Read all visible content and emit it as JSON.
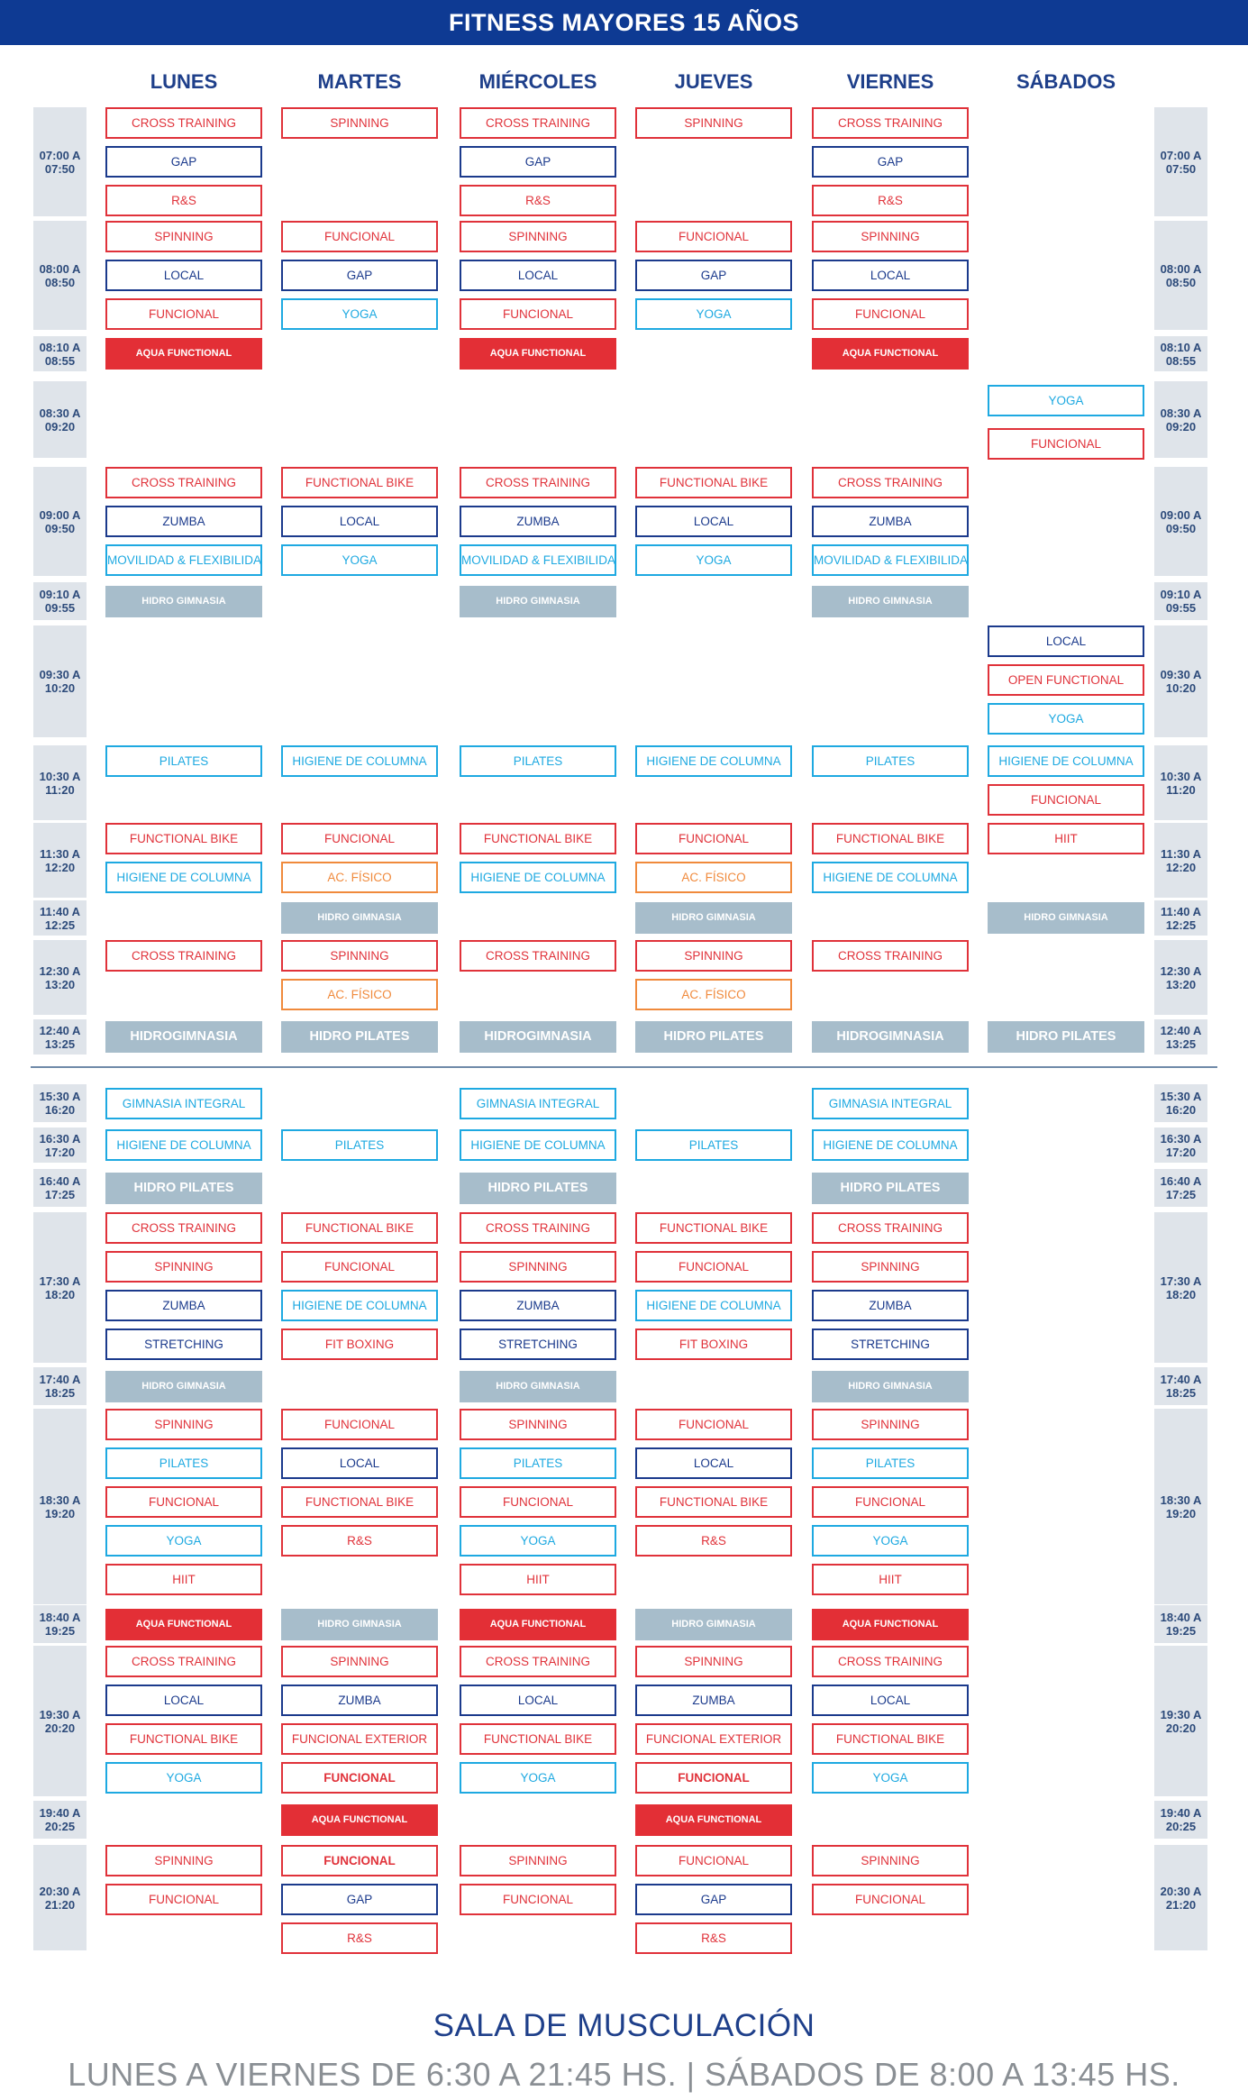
{
  "title": "FITNESS MAYORES 15 AÑOS",
  "days": [
    "LUNES",
    "MARTES",
    "MIÉRCOLES",
    "JUEVES",
    "VIERNES",
    "SÁBADOS"
  ],
  "slots": [
    {
      "time": [
        "07:00 A",
        "07:50"
      ],
      "classes": [
        [
          [
            "CROSS TRAINING",
            "red"
          ],
          [
            "GAP",
            "navy"
          ],
          [
            "R&S",
            "red"
          ]
        ],
        [
          [
            "SPINNING",
            "red"
          ]
        ],
        [
          [
            "CROSS TRAINING",
            "red"
          ],
          [
            "GAP",
            "navy"
          ],
          [
            "R&S",
            "red"
          ]
        ],
        [
          [
            "SPINNING",
            "red"
          ]
        ],
        [
          [
            "CROSS TRAINING",
            "red"
          ],
          [
            "GAP",
            "navy"
          ],
          [
            "R&S",
            "red"
          ]
        ],
        []
      ]
    },
    {
      "time": [
        "08:00 A",
        "08:50"
      ],
      "classes": [
        [
          [
            "SPINNING",
            "red"
          ],
          [
            "LOCAL",
            "navy"
          ],
          [
            "FUNCIONAL",
            "red"
          ]
        ],
        [
          [
            "FUNCIONAL",
            "red"
          ],
          [
            "GAP",
            "navy"
          ],
          [
            "YOGA",
            "cyan"
          ]
        ],
        [
          [
            "SPINNING",
            "red"
          ],
          [
            "LOCAL",
            "navy"
          ],
          [
            "FUNCIONAL",
            "red"
          ]
        ],
        [
          [
            "FUNCIONAL",
            "red"
          ],
          [
            "GAP",
            "navy"
          ],
          [
            "YOGA",
            "cyan"
          ]
        ],
        [
          [
            "SPINNING",
            "red"
          ],
          [
            "LOCAL",
            "navy"
          ],
          [
            "FUNCIONAL",
            "red"
          ]
        ],
        []
      ]
    },
    {
      "time": [
        "08:10 A",
        "08:55"
      ],
      "classes": [
        [
          [
            "AQUA FUNCTIONAL",
            "fillred"
          ]
        ],
        [],
        [
          [
            "AQUA FUNCTIONAL",
            "fillred"
          ]
        ],
        [],
        [
          [
            "AQUA FUNCTIONAL",
            "fillred"
          ]
        ],
        []
      ]
    },
    {
      "time": [
        "08:30 A",
        "09:20"
      ],
      "classes": [
        [],
        [],
        [],
        [],
        [],
        [
          [
            "YOGA",
            "cyan"
          ],
          [
            "FUNCIONAL",
            "red"
          ]
        ]
      ]
    },
    {
      "time": [
        "09:00 A",
        "09:50"
      ],
      "classes": [
        [
          [
            "CROSS TRAINING",
            "red"
          ],
          [
            "ZUMBA",
            "navy"
          ],
          [
            "MOVILIDAD & FLEXIBILIDAD",
            "cyan"
          ]
        ],
        [
          [
            "FUNCTIONAL BIKE",
            "red"
          ],
          [
            "LOCAL",
            "navy"
          ],
          [
            "YOGA",
            "cyan"
          ]
        ],
        [
          [
            "CROSS TRAINING",
            "red"
          ],
          [
            "ZUMBA",
            "navy"
          ],
          [
            "MOVILIDAD & FLEXIBILIDAD",
            "cyan"
          ]
        ],
        [
          [
            "FUNCTIONAL BIKE",
            "red"
          ],
          [
            "LOCAL",
            "navy"
          ],
          [
            "YOGA",
            "cyan"
          ]
        ],
        [
          [
            "CROSS TRAINING",
            "red"
          ],
          [
            "ZUMBA",
            "navy"
          ],
          [
            "MOVILIDAD & FLEXIBILIDAD",
            "cyan"
          ]
        ],
        []
      ]
    },
    {
      "time": [
        "09:10 A",
        "09:55"
      ],
      "classes": [
        [
          [
            "HIDRO GIMNASIA",
            "fillgray"
          ]
        ],
        [],
        [
          [
            "HIDRO GIMNASIA",
            "fillgray"
          ]
        ],
        [],
        [
          [
            "HIDRO GIMNASIA",
            "fillgray"
          ]
        ],
        []
      ]
    },
    {
      "time": [
        "09:30 A",
        "10:20"
      ],
      "classes": [
        [],
        [],
        [],
        [],
        [],
        [
          [
            "LOCAL",
            "navy"
          ],
          [
            "OPEN FUNCTIONAL",
            "red"
          ],
          [
            "YOGA",
            "cyan"
          ]
        ]
      ]
    },
    {
      "time": [
        "10:30 A",
        "11:20"
      ],
      "classes": [
        [
          [
            "PILATES",
            "cyan"
          ]
        ],
        [
          [
            "HIGIENE DE COLUMNA",
            "cyan"
          ]
        ],
        [
          [
            "PILATES",
            "cyan"
          ]
        ],
        [
          [
            "HIGIENE DE COLUMNA",
            "cyan"
          ]
        ],
        [
          [
            "PILATES",
            "cyan"
          ]
        ],
        [
          [
            "HIGIENE DE COLUMNA",
            "cyan"
          ],
          [
            "FUNCIONAL",
            "red"
          ]
        ]
      ]
    },
    {
      "time": [
        "11:30 A",
        "12:20"
      ],
      "classes": [
        [
          [
            "FUNCTIONAL BIKE",
            "red"
          ],
          [
            "HIGIENE DE COLUMNA",
            "cyan"
          ]
        ],
        [
          [
            "FUNCIONAL",
            "red"
          ],
          [
            "AC. FÍSICO",
            "orange"
          ]
        ],
        [
          [
            "FUNCTIONAL BIKE",
            "red"
          ],
          [
            "HIGIENE DE COLUMNA",
            "cyan"
          ]
        ],
        [
          [
            "FUNCIONAL",
            "red"
          ],
          [
            "AC. FÍSICO",
            "orange"
          ]
        ],
        [
          [
            "FUNCTIONAL BIKE",
            "red"
          ],
          [
            "HIGIENE DE COLUMNA",
            "cyan"
          ]
        ],
        [
          [
            "HIIT",
            "red"
          ]
        ]
      ]
    },
    {
      "time": [
        "11:40 A",
        "12:25"
      ],
      "classes": [
        [],
        [
          [
            "HIDRO GIMNASIA",
            "fillgray"
          ]
        ],
        [],
        [
          [
            "HIDRO GIMNASIA",
            "fillgray"
          ]
        ],
        [],
        [
          [
            "HIDRO GIMNASIA",
            "fillgray"
          ]
        ]
      ]
    },
    {
      "time": [
        "12:30 A",
        "13:20"
      ],
      "classes": [
        [
          [
            "CROSS TRAINING",
            "red"
          ]
        ],
        [
          [
            "SPINNING",
            "red"
          ],
          [
            "AC. FÍSICO",
            "orange"
          ]
        ],
        [
          [
            "CROSS TRAINING",
            "red"
          ]
        ],
        [
          [
            "SPINNING",
            "red"
          ],
          [
            "AC. FÍSICO",
            "orange"
          ]
        ],
        [
          [
            "CROSS TRAINING",
            "red"
          ]
        ],
        []
      ]
    },
    {
      "time": [
        "12:40 A",
        "13:25"
      ],
      "classes": [
        [
          [
            "HIDROGIMNASIA",
            "fillgray big"
          ]
        ],
        [
          [
            "HIDRO PILATES",
            "fillgray big"
          ]
        ],
        [
          [
            "HIDROGIMNASIA",
            "fillgray big"
          ]
        ],
        [
          [
            "HIDRO PILATES",
            "fillgray big"
          ]
        ],
        [
          [
            "HIDROGIMNASIA",
            "fillgray big"
          ]
        ],
        [
          [
            "HIDRO PILATES",
            "fillgray big"
          ]
        ]
      ]
    },
    {
      "time": [
        "15:30 A",
        "16:20"
      ],
      "classes": [
        [
          [
            "GIMNASIA INTEGRAL",
            "cyan"
          ]
        ],
        [],
        [
          [
            "GIMNASIA INTEGRAL",
            "cyan"
          ]
        ],
        [],
        [
          [
            "GIMNASIA INTEGRAL",
            "cyan"
          ]
        ],
        []
      ]
    },
    {
      "time": [
        "16:30 A",
        "17:20"
      ],
      "classes": [
        [
          [
            "HIGIENE DE COLUMNA",
            "cyan"
          ]
        ],
        [
          [
            "PILATES",
            "cyan"
          ]
        ],
        [
          [
            "HIGIENE DE COLUMNA",
            "cyan"
          ]
        ],
        [
          [
            "PILATES",
            "cyan"
          ]
        ],
        [
          [
            "HIGIENE DE COLUMNA",
            "cyan"
          ]
        ],
        []
      ]
    },
    {
      "time": [
        "16:40 A",
        "17:25"
      ],
      "classes": [
        [
          [
            "HIDRO PILATES",
            "fillgray big"
          ]
        ],
        [],
        [
          [
            "HIDRO PILATES",
            "fillgray big"
          ]
        ],
        [],
        [
          [
            "HIDRO PILATES",
            "fillgray big"
          ]
        ],
        []
      ]
    },
    {
      "time": [
        "17:30 A",
        "18:20"
      ],
      "classes": [
        [
          [
            "CROSS TRAINING",
            "red"
          ],
          [
            "SPINNING",
            "red"
          ],
          [
            "ZUMBA",
            "navy"
          ],
          [
            "STRETCHING",
            "navy"
          ]
        ],
        [
          [
            "FUNCTIONAL BIKE",
            "red"
          ],
          [
            "FUNCIONAL",
            "red"
          ],
          [
            "HIGIENE DE COLUMNA",
            "cyan"
          ],
          [
            "FIT BOXING",
            "red"
          ]
        ],
        [
          [
            "CROSS TRAINING",
            "red"
          ],
          [
            "SPINNING",
            "red"
          ],
          [
            "ZUMBA",
            "navy"
          ],
          [
            "STRETCHING",
            "navy"
          ]
        ],
        [
          [
            "FUNCTIONAL BIKE",
            "red"
          ],
          [
            "FUNCIONAL",
            "red"
          ],
          [
            "HIGIENE DE COLUMNA",
            "cyan"
          ],
          [
            "FIT BOXING",
            "red"
          ]
        ],
        [
          [
            "CROSS TRAINING",
            "red"
          ],
          [
            "SPINNING",
            "red"
          ],
          [
            "ZUMBA",
            "navy"
          ],
          [
            "STRETCHING",
            "navy"
          ]
        ],
        []
      ]
    },
    {
      "time": [
        "17:40 A",
        "18:25"
      ],
      "classes": [
        [
          [
            "HIDRO GIMNASIA",
            "fillgray"
          ]
        ],
        [],
        [
          [
            "HIDRO GIMNASIA",
            "fillgray"
          ]
        ],
        [],
        [
          [
            "HIDRO GIMNASIA",
            "fillgray"
          ]
        ],
        []
      ]
    },
    {
      "time": [
        "18:30 A",
        "19:20"
      ],
      "classes": [
        [
          [
            "SPINNING",
            "red"
          ],
          [
            "PILATES",
            "cyan"
          ],
          [
            "FUNCIONAL",
            "red"
          ],
          [
            "YOGA",
            "cyan"
          ],
          [
            "HIIT",
            "red"
          ]
        ],
        [
          [
            "FUNCIONAL",
            "red"
          ],
          [
            "LOCAL",
            "navy"
          ],
          [
            "FUNCTIONAL BIKE",
            "red"
          ],
          [
            "R&S",
            "red"
          ]
        ],
        [
          [
            "SPINNING",
            "red"
          ],
          [
            "PILATES",
            "cyan"
          ],
          [
            "FUNCIONAL",
            "red"
          ],
          [
            "YOGA",
            "cyan"
          ],
          [
            "HIIT",
            "red"
          ]
        ],
        [
          [
            "FUNCIONAL",
            "red"
          ],
          [
            "LOCAL",
            "navy"
          ],
          [
            "FUNCTIONAL BIKE",
            "red"
          ],
          [
            "R&S",
            "red"
          ]
        ],
        [
          [
            "SPINNING",
            "red"
          ],
          [
            "PILATES",
            "cyan"
          ],
          [
            "FUNCIONAL",
            "red"
          ],
          [
            "YOGA",
            "cyan"
          ],
          [
            "HIIT",
            "red"
          ]
        ],
        []
      ]
    },
    {
      "time": [
        "18:40 A",
        "19:25"
      ],
      "classes": [
        [
          [
            "AQUA FUNCTIONAL",
            "fillred"
          ]
        ],
        [
          [
            "HIDRO GIMNASIA",
            "fillgray"
          ]
        ],
        [
          [
            "AQUA FUNCTIONAL",
            "fillred"
          ]
        ],
        [
          [
            "HIDRO GIMNASIA",
            "fillgray"
          ]
        ],
        [
          [
            "AQUA FUNCTIONAL",
            "fillred"
          ]
        ],
        []
      ]
    },
    {
      "time": [
        "19:30 A",
        "20:20"
      ],
      "classes": [
        [
          [
            "CROSS TRAINING",
            "red"
          ],
          [
            "LOCAL",
            "navy"
          ],
          [
            "FUNCTIONAL BIKE",
            "red"
          ],
          [
            "YOGA",
            "cyan"
          ]
        ],
        [
          [
            "SPINNING",
            "red"
          ],
          [
            "ZUMBA",
            "navy"
          ],
          [
            "FUNCIONAL EXTERIOR",
            "red"
          ],
          [
            "FUNCIONAL",
            "red bold"
          ]
        ],
        [
          [
            "CROSS TRAINING",
            "red"
          ],
          [
            "LOCAL",
            "navy"
          ],
          [
            "FUNCTIONAL BIKE",
            "red"
          ],
          [
            "YOGA",
            "cyan"
          ]
        ],
        [
          [
            "SPINNING",
            "red"
          ],
          [
            "ZUMBA",
            "navy"
          ],
          [
            "FUNCIONAL EXTERIOR",
            "red"
          ],
          [
            "FUNCIONAL",
            "red bold"
          ]
        ],
        [
          [
            "CROSS TRAINING",
            "red"
          ],
          [
            "LOCAL",
            "navy"
          ],
          [
            "FUNCTIONAL BIKE",
            "red"
          ],
          [
            "YOGA",
            "cyan"
          ]
        ],
        []
      ]
    },
    {
      "time": [
        "19:40 A",
        "20:25"
      ],
      "classes": [
        [],
        [
          [
            "AQUA FUNCTIONAL",
            "fillred"
          ]
        ],
        [],
        [
          [
            "AQUA FUNCTIONAL",
            "fillred"
          ]
        ],
        [],
        []
      ]
    },
    {
      "time": [
        "20:30 A",
        "21:20"
      ],
      "classes": [
        [
          [
            "SPINNING",
            "red"
          ],
          [
            "FUNCIONAL",
            "red"
          ]
        ],
        [
          [
            "FUNCIONAL",
            "red bold"
          ],
          [
            "GAP",
            "navy"
          ],
          [
            "R&S",
            "red"
          ]
        ],
        [
          [
            "SPINNING",
            "red"
          ],
          [
            "FUNCIONAL",
            "red"
          ]
        ],
        [
          [
            "FUNCIONAL",
            "red"
          ],
          [
            "GAP",
            "navy"
          ],
          [
            "R&S",
            "red"
          ]
        ],
        [
          [
            "SPINNING",
            "red"
          ],
          [
            "FUNCIONAL",
            "red"
          ]
        ],
        []
      ]
    }
  ],
  "footer": {
    "title": "SALA DE MUSCULACIÓN",
    "hours": "LUNES A VIERNES DE 6:30 A 21:45 HS. | SÁBADOS DE 8:00 A 13:45 HS."
  }
}
